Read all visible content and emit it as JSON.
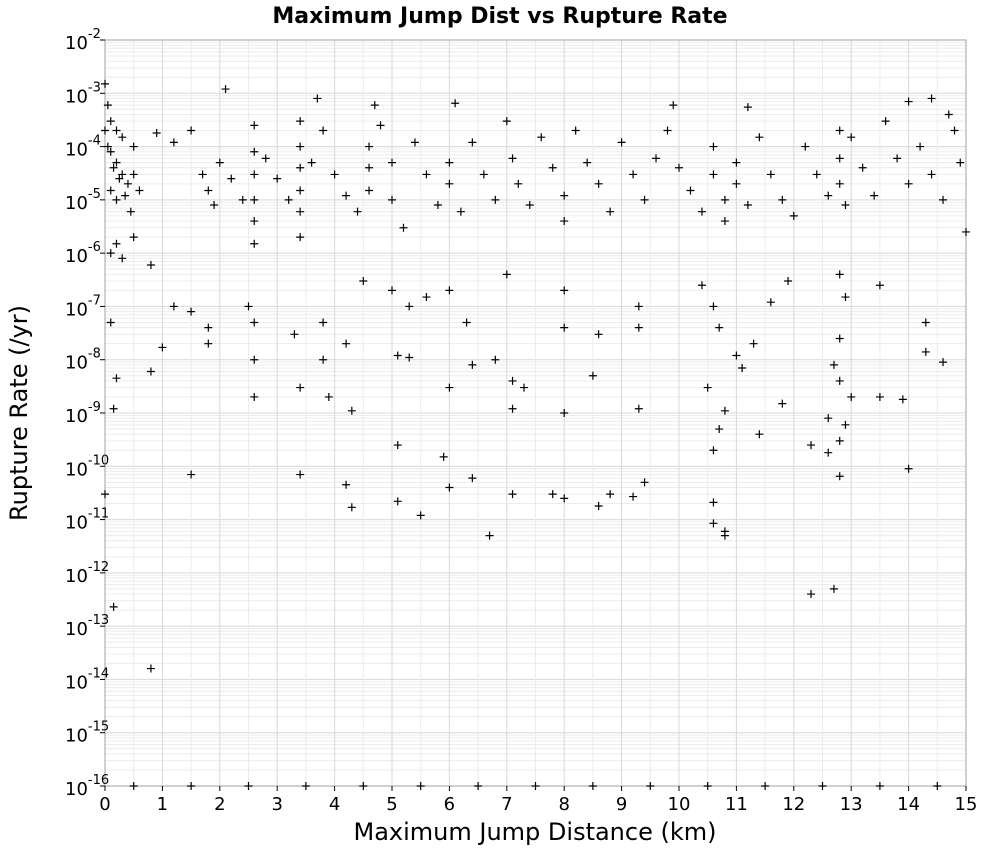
{
  "chart_data": {
    "type": "scatter",
    "title": "Maximum Jump Dist vs Rupture Rate",
    "xlabel": "Maximum Jump Distance (km)",
    "ylabel": "Rupture Rate (/yr)",
    "xlim": [
      0,
      15
    ],
    "ylim": [
      1e-16,
      0.01
    ],
    "y_scale": "log",
    "grid": true,
    "marker": "plus",
    "marker_color": "#000000",
    "x_ticks": [
      "0",
      "1",
      "2",
      "3",
      "4",
      "5",
      "6",
      "7",
      "8",
      "9",
      "10",
      "11",
      "12",
      "13",
      "14",
      "15"
    ],
    "y_ticks": [
      {
        "base": "10",
        "exp": "-2"
      },
      {
        "base": "10",
        "exp": "-3"
      },
      {
        "base": "10",
        "exp": "-4"
      },
      {
        "base": "10",
        "exp": "-5"
      },
      {
        "base": "10",
        "exp": "-6"
      },
      {
        "base": "10",
        "exp": "-7"
      },
      {
        "base": "10",
        "exp": "-8"
      },
      {
        "base": "10",
        "exp": "-9"
      },
      {
        "base": "10",
        "exp": "-10"
      },
      {
        "base": "10",
        "exp": "-11"
      },
      {
        "base": "10",
        "exp": "-12"
      },
      {
        "base": "10",
        "exp": "-13"
      },
      {
        "base": "10",
        "exp": "-14"
      },
      {
        "base": "10",
        "exp": "-15"
      },
      {
        "base": "10",
        "exp": "-16"
      }
    ],
    "points": [
      [
        2.1,
        0.0012
      ],
      [
        3.7,
        0.0008
      ],
      [
        4.7,
        0.0006
      ],
      [
        6.1,
        0.00065
      ],
      [
        9.9,
        0.0006
      ],
      [
        11.2,
        0.00055
      ],
      [
        14.4,
        0.0008
      ],
      [
        14.0,
        0.0007
      ],
      [
        0.0,
        0.0015
      ],
      [
        0.05,
        0.0006
      ],
      [
        0.1,
        0.0003
      ],
      [
        0.2,
        0.0002
      ],
      [
        0.3,
        0.00015
      ],
      [
        0.1,
        8e-05
      ],
      [
        0.2,
        5e-05
      ],
      [
        0.3,
        3e-05
      ],
      [
        0.4,
        2e-05
      ],
      [
        0.1,
        1.5e-05
      ],
      [
        0.2,
        1e-05
      ],
      [
        0.0,
        0.0002
      ],
      [
        0.05,
        0.0001
      ],
      [
        0.15,
        4e-05
      ],
      [
        0.25,
        2.5e-05
      ],
      [
        0.35,
        1.2e-05
      ],
      [
        0.5,
        0.0001
      ],
      [
        0.5,
        3e-05
      ],
      [
        0.6,
        1.5e-05
      ],
      [
        0.45,
        6e-06
      ],
      [
        0.5,
        2e-06
      ],
      [
        0.2,
        1.5e-06
      ],
      [
        0.1,
        1e-06
      ],
      [
        0.3,
        8e-07
      ],
      [
        0.9,
        0.00018
      ],
      [
        1.2,
        0.00012
      ],
      [
        1.5,
        0.0002
      ],
      [
        1.7,
        3e-05
      ],
      [
        1.8,
        1.5e-05
      ],
      [
        1.9,
        8e-06
      ],
      [
        2.0,
        5e-05
      ],
      [
        2.2,
        2.5e-05
      ],
      [
        2.4,
        1e-05
      ],
      [
        2.6,
        0.00025
      ],
      [
        2.6,
        8e-05
      ],
      [
        2.6,
        3e-05
      ],
      [
        2.6,
        1e-05
      ],
      [
        2.6,
        4e-06
      ],
      [
        2.6,
        1.5e-06
      ],
      [
        2.8,
        6e-05
      ],
      [
        3.0,
        2.5e-05
      ],
      [
        3.2,
        1e-05
      ],
      [
        3.4,
        0.0003
      ],
      [
        3.4,
        0.0001
      ],
      [
        3.4,
        4e-05
      ],
      [
        3.4,
        1.5e-05
      ],
      [
        3.4,
        6e-06
      ],
      [
        3.4,
        2e-06
      ],
      [
        3.6,
        5e-05
      ],
      [
        3.8,
        0.0002
      ],
      [
        4.0,
        3e-05
      ],
      [
        4.2,
        1.2e-05
      ],
      [
        4.4,
        6e-06
      ],
      [
        4.6,
        0.0001
      ],
      [
        4.6,
        4e-05
      ],
      [
        4.6,
        1.5e-05
      ],
      [
        4.8,
        0.00025
      ],
      [
        5.0,
        5e-05
      ],
      [
        5.0,
        1e-05
      ],
      [
        5.2,
        3e-06
      ],
      [
        5.4,
        0.00012
      ],
      [
        5.6,
        3e-05
      ],
      [
        5.8,
        8e-06
      ],
      [
        6.0,
        5e-05
      ],
      [
        6.0,
        2e-05
      ],
      [
        6.2,
        6e-06
      ],
      [
        6.4,
        0.00012
      ],
      [
        6.6,
        3e-05
      ],
      [
        6.8,
        1e-05
      ],
      [
        7.0,
        0.0003
      ],
      [
        7.1,
        6e-05
      ],
      [
        7.2,
        2e-05
      ],
      [
        7.4,
        8e-06
      ],
      [
        7.6,
        0.00015
      ],
      [
        7.8,
        4e-05
      ],
      [
        8.0,
        1.2e-05
      ],
      [
        8.0,
        4e-06
      ],
      [
        8.2,
        0.0002
      ],
      [
        8.4,
        5e-05
      ],
      [
        8.6,
        2e-05
      ],
      [
        8.8,
        6e-06
      ],
      [
        9.0,
        0.00012
      ],
      [
        9.2,
        3e-05
      ],
      [
        9.4,
        1e-05
      ],
      [
        9.6,
        6e-05
      ],
      [
        9.8,
        0.0002
      ],
      [
        10.0,
        4e-05
      ],
      [
        10.2,
        1.5e-05
      ],
      [
        10.4,
        6e-06
      ],
      [
        10.6,
        0.0001
      ],
      [
        10.6,
        3e-05
      ],
      [
        10.8,
        1e-05
      ],
      [
        10.8,
        4e-06
      ],
      [
        11.0,
        5e-05
      ],
      [
        11.0,
        2e-05
      ],
      [
        11.2,
        8e-06
      ],
      [
        11.4,
        0.00015
      ],
      [
        11.6,
        3e-05
      ],
      [
        11.8,
        1e-05
      ],
      [
        12.0,
        5e-06
      ],
      [
        12.2,
        0.0001
      ],
      [
        12.4,
        3e-05
      ],
      [
        12.6,
        1.2e-05
      ],
      [
        12.8,
        0.0002
      ],
      [
        12.8,
        6e-05
      ],
      [
        12.8,
        2e-05
      ],
      [
        12.9,
        8e-06
      ],
      [
        13.0,
        0.00015
      ],
      [
        13.2,
        4e-05
      ],
      [
        13.4,
        1.2e-05
      ],
      [
        13.6,
        0.0003
      ],
      [
        13.8,
        6e-05
      ],
      [
        14.0,
        2e-05
      ],
      [
        14.2,
        0.0001
      ],
      [
        14.4,
        3e-05
      ],
      [
        14.6,
        1e-05
      ],
      [
        14.8,
        0.0002
      ],
      [
        14.9,
        5e-05
      ],
      [
        15.0,
        2.5e-06
      ],
      [
        14.7,
        0.0004
      ],
      [
        0.8,
        6e-07
      ],
      [
        1.2,
        1e-07
      ],
      [
        1.5,
        8e-08
      ],
      [
        1.8,
        4e-08
      ],
      [
        2.5,
        1e-07
      ],
      [
        2.6,
        5e-08
      ],
      [
        3.3,
        3e-08
      ],
      [
        3.8,
        5e-08
      ],
      [
        4.5,
        3e-07
      ],
      [
        5.0,
        2e-07
      ],
      [
        5.3,
        1e-07
      ],
      [
        5.6,
        1.5e-07
      ],
      [
        6.0,
        2e-07
      ],
      [
        6.3,
        5e-08
      ],
      [
        7.0,
        4e-07
      ],
      [
        8.0,
        2e-07
      ],
      [
        8.0,
        4e-08
      ],
      [
        8.6,
        3e-08
      ],
      [
        9.3,
        1e-07
      ],
      [
        9.3,
        4e-08
      ],
      [
        10.4,
        2.5e-07
      ],
      [
        10.6,
        1e-07
      ],
      [
        10.7,
        4e-08
      ],
      [
        11.3,
        2e-08
      ],
      [
        11.6,
        1.2e-07
      ],
      [
        11.9,
        3e-07
      ],
      [
        12.8,
        4e-07
      ],
      [
        12.9,
        1.5e-07
      ],
      [
        12.8,
        2.5e-08
      ],
      [
        13.5,
        2.5e-07
      ],
      [
        14.3,
        5e-08
      ],
      [
        0.1,
        5e-08
      ],
      [
        1.0,
        1.7e-08
      ],
      [
        1.8,
        2e-08
      ],
      [
        2.6,
        1e-08
      ],
      [
        3.4,
        3e-09
      ],
      [
        3.8,
        1e-08
      ],
      [
        4.2,
        2e-08
      ],
      [
        5.1,
        1.2e-08
      ],
      [
        5.3,
        1.1e-08
      ],
      [
        6.4,
        8e-09
      ],
      [
        6.8,
        1e-08
      ],
      [
        7.1,
        4e-09
      ],
      [
        7.3,
        3e-09
      ],
      [
        8.5,
        5e-09
      ],
      [
        10.5,
        3e-09
      ],
      [
        11.0,
        1.2e-08
      ],
      [
        11.1,
        7e-09
      ],
      [
        12.7,
        8e-09
      ],
      [
        12.8,
        4e-09
      ],
      [
        13.0,
        2e-09
      ],
      [
        14.3,
        1.4e-08
      ],
      [
        14.6,
        9e-09
      ],
      [
        0.8,
        6e-09
      ],
      [
        0.2,
        4.5e-09
      ],
      [
        2.6,
        2e-09
      ],
      [
        3.9,
        2e-09
      ],
      [
        4.3,
        1.1e-09
      ],
      [
        6.0,
        3e-09
      ],
      [
        7.1,
        1.2e-09
      ],
      [
        8.0,
        1e-09
      ],
      [
        9.3,
        1.2e-09
      ],
      [
        10.8,
        1.1e-09
      ],
      [
        10.7,
        5e-10
      ],
      [
        11.4,
        4e-10
      ],
      [
        11.8,
        1.5e-09
      ],
      [
        12.6,
        8e-10
      ],
      [
        12.9,
        6e-10
      ],
      [
        13.5,
        2e-09
      ],
      [
        13.9,
        1.8e-09
      ],
      [
        0.15,
        1.2e-09
      ],
      [
        5.1,
        2.5e-10
      ],
      [
        5.9,
        1.5e-10
      ],
      [
        10.6,
        2e-10
      ],
      [
        12.3,
        2.5e-10
      ],
      [
        12.6,
        1.8e-10
      ],
      [
        12.8,
        3e-10
      ],
      [
        1.5,
        7e-11
      ],
      [
        3.4,
        7e-11
      ],
      [
        4.2,
        4.5e-11
      ],
      [
        6.0,
        4e-11
      ],
      [
        6.4,
        6e-11
      ],
      [
        9.4,
        5e-11
      ],
      [
        12.8,
        6.5e-11
      ],
      [
        14.0,
        9e-11
      ],
      [
        0.0,
        3e-11
      ],
      [
        4.3,
        1.7e-11
      ],
      [
        5.1,
        2.2e-11
      ],
      [
        5.5,
        1.2e-11
      ],
      [
        7.1,
        3e-11
      ],
      [
        7.8,
        3e-11
      ],
      [
        8.0,
        2.5e-11
      ],
      [
        8.6,
        1.8e-11
      ],
      [
        8.8,
        3e-11
      ],
      [
        9.2,
        2.7e-11
      ],
      [
        10.6,
        2.1e-11
      ],
      [
        6.7,
        5e-12
      ],
      [
        10.6,
        8.5e-12
      ],
      [
        10.8,
        6e-12
      ],
      [
        10.8,
        5e-12
      ],
      [
        12.3,
        4e-13
      ],
      [
        12.7,
        5e-13
      ],
      [
        0.15,
        2.3e-13
      ],
      [
        0.8,
        1.6e-14
      ],
      [
        0.5,
        1e-16
      ],
      [
        1.5,
        1e-16
      ],
      [
        2.5,
        1e-16
      ],
      [
        3.5,
        1e-16
      ],
      [
        4.5,
        1e-16
      ],
      [
        5.5,
        1e-16
      ],
      [
        6.5,
        1e-16
      ],
      [
        7.5,
        1e-16
      ],
      [
        8.5,
        1e-16
      ],
      [
        9.5,
        1e-16
      ],
      [
        10.5,
        1e-16
      ],
      [
        11.5,
        1e-16
      ],
      [
        12.5,
        1e-16
      ],
      [
        13.5,
        1e-16
      ],
      [
        14.5,
        1e-16
      ]
    ]
  }
}
